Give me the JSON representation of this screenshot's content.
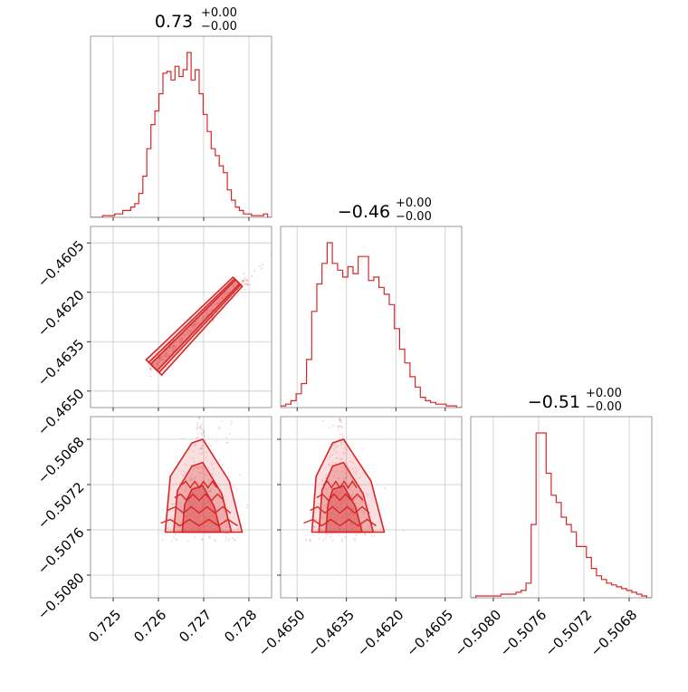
{
  "chart_data": {
    "type": "corner",
    "color": "#d62728",
    "parameters": [
      {
        "title_value": "0.73",
        "title_plus": "+0.00",
        "title_minus": "−0.00",
        "range": [
          0.7245,
          0.7285
        ],
        "ticks": [
          0.725,
          0.726,
          0.727,
          0.728
        ],
        "tick_labels": [
          "0.725",
          "0.726",
          "0.727",
          "0.728"
        ]
      },
      {
        "title_value": "−0.46",
        "title_plus": "+0.00",
        "title_minus": "−0.00",
        "range": [
          -0.4655,
          -0.46
        ],
        "ticks": [
          -0.465,
          -0.4635,
          -0.462,
          -0.4605
        ],
        "tick_labels": [
          "−0.4650",
          "−0.4635",
          "−0.4620",
          "−0.4605"
        ]
      },
      {
        "title_value": "−0.51",
        "title_plus": "+0.00",
        "title_minus": "−0.00",
        "range": [
          -0.5082,
          -0.5066
        ],
        "ticks": [
          -0.508,
          -0.5076,
          -0.5072,
          -0.5068
        ],
        "tick_labels": [
          "−0.5080",
          "−0.5076",
          "−0.5072",
          "−0.5068"
        ]
      }
    ],
    "histograms": [
      {
        "bin_start": 0.7245,
        "bin_end": 0.7285,
        "counts": [
          0,
          0,
          0,
          1,
          1,
          1,
          2,
          2,
          4,
          4,
          6,
          8,
          14,
          24,
          40,
          54,
          62,
          72,
          84,
          85,
          80,
          88,
          82,
          86,
          96,
          80,
          86,
          72,
          60,
          50,
          40,
          36,
          30,
          26,
          16,
          10,
          6,
          4,
          2,
          2,
          1,
          1,
          1,
          2,
          0
        ]
      },
      {
        "bin_start": -0.4655,
        "bin_end": -0.46,
        "counts": [
          1,
          2,
          4,
          8,
          14,
          28,
          56,
          72,
          84,
          96,
          84,
          80,
          76,
          82,
          78,
          88,
          88,
          74,
          76,
          70,
          66,
          60,
          46,
          34,
          26,
          18,
          12,
          6,
          4,
          3,
          2,
          2,
          1,
          1,
          0
        ]
      },
      {
        "bin_start": -0.5082,
        "bin_end": -0.5066,
        "counts": [
          0,
          1,
          1,
          1,
          1,
          1,
          2,
          2,
          2,
          3,
          4,
          8,
          40,
          90,
          90,
          68,
          56,
          52,
          44,
          40,
          36,
          28,
          28,
          22,
          16,
          12,
          10,
          8,
          7,
          6,
          5,
          4,
          3,
          2,
          1,
          0
        ]
      }
    ]
  }
}
